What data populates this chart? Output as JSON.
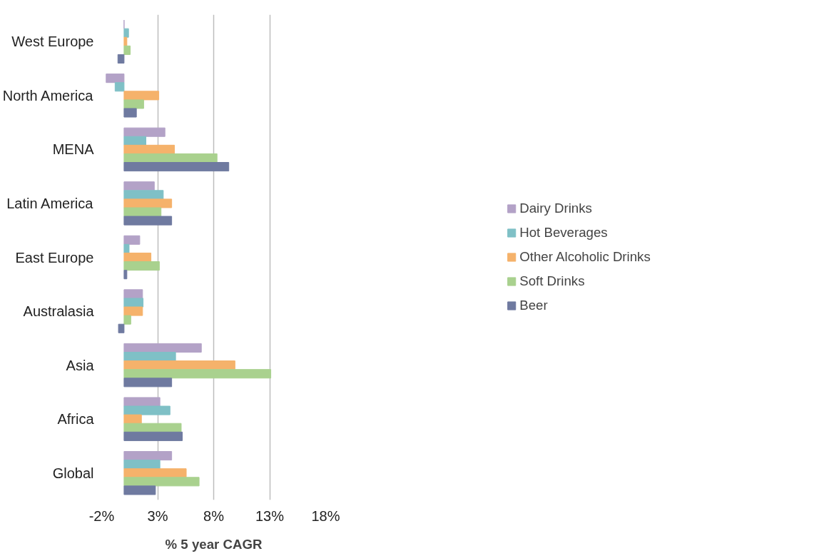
{
  "chart_data": {
    "type": "bar",
    "orientation": "horizontal",
    "xlabel": "% 5 year CAGR",
    "categories": [
      "West Europe",
      "North America",
      "MENA",
      "Latin America",
      "East Europe",
      "Australasia",
      "Asia",
      "Africa",
      "Global"
    ],
    "series": [
      {
        "name": "Dairy Drinks",
        "color": "#b3a2c7",
        "values": [
          0,
          -1.6,
          3.65,
          2.7,
          1.4,
          1.65,
          6.9,
          3.2,
          4.25
        ]
      },
      {
        "name": "Hot Beverages",
        "color": "#7fc0c6",
        "values": [
          0.4,
          -0.8,
          1.95,
          3.5,
          0.45,
          1.7,
          4.6,
          4.1,
          3.2
        ]
      },
      {
        "name": "Other Alcoholic Drinks",
        "color": "#f5b26b",
        "values": [
          0.25,
          3.1,
          4.5,
          4.25,
          2.4,
          1.65,
          9.9,
          1.55,
          5.55
        ]
      },
      {
        "name": "Soft Drinks",
        "color": "#a9d18e",
        "values": [
          0.55,
          1.75,
          8.3,
          3.3,
          3.15,
          0.6,
          13.1,
          5.1,
          6.7
        ]
      },
      {
        "name": "Beer",
        "color": "#6f7aa0",
        "values": [
          -0.55,
          1.1,
          9.35,
          4.25,
          0.25,
          -0.5,
          4.25,
          5.2,
          2.8
        ]
      }
    ],
    "xlim": [
      -2,
      18
    ],
    "xticks": [
      {
        "value": -2,
        "label": "-2%"
      },
      {
        "value": 3,
        "label": "3%"
      },
      {
        "value": 8,
        "label": "8%"
      },
      {
        "value": 13,
        "label": "13%"
      },
      {
        "value": 18,
        "label": "18%"
      }
    ],
    "grid": "x",
    "legend": "right"
  }
}
